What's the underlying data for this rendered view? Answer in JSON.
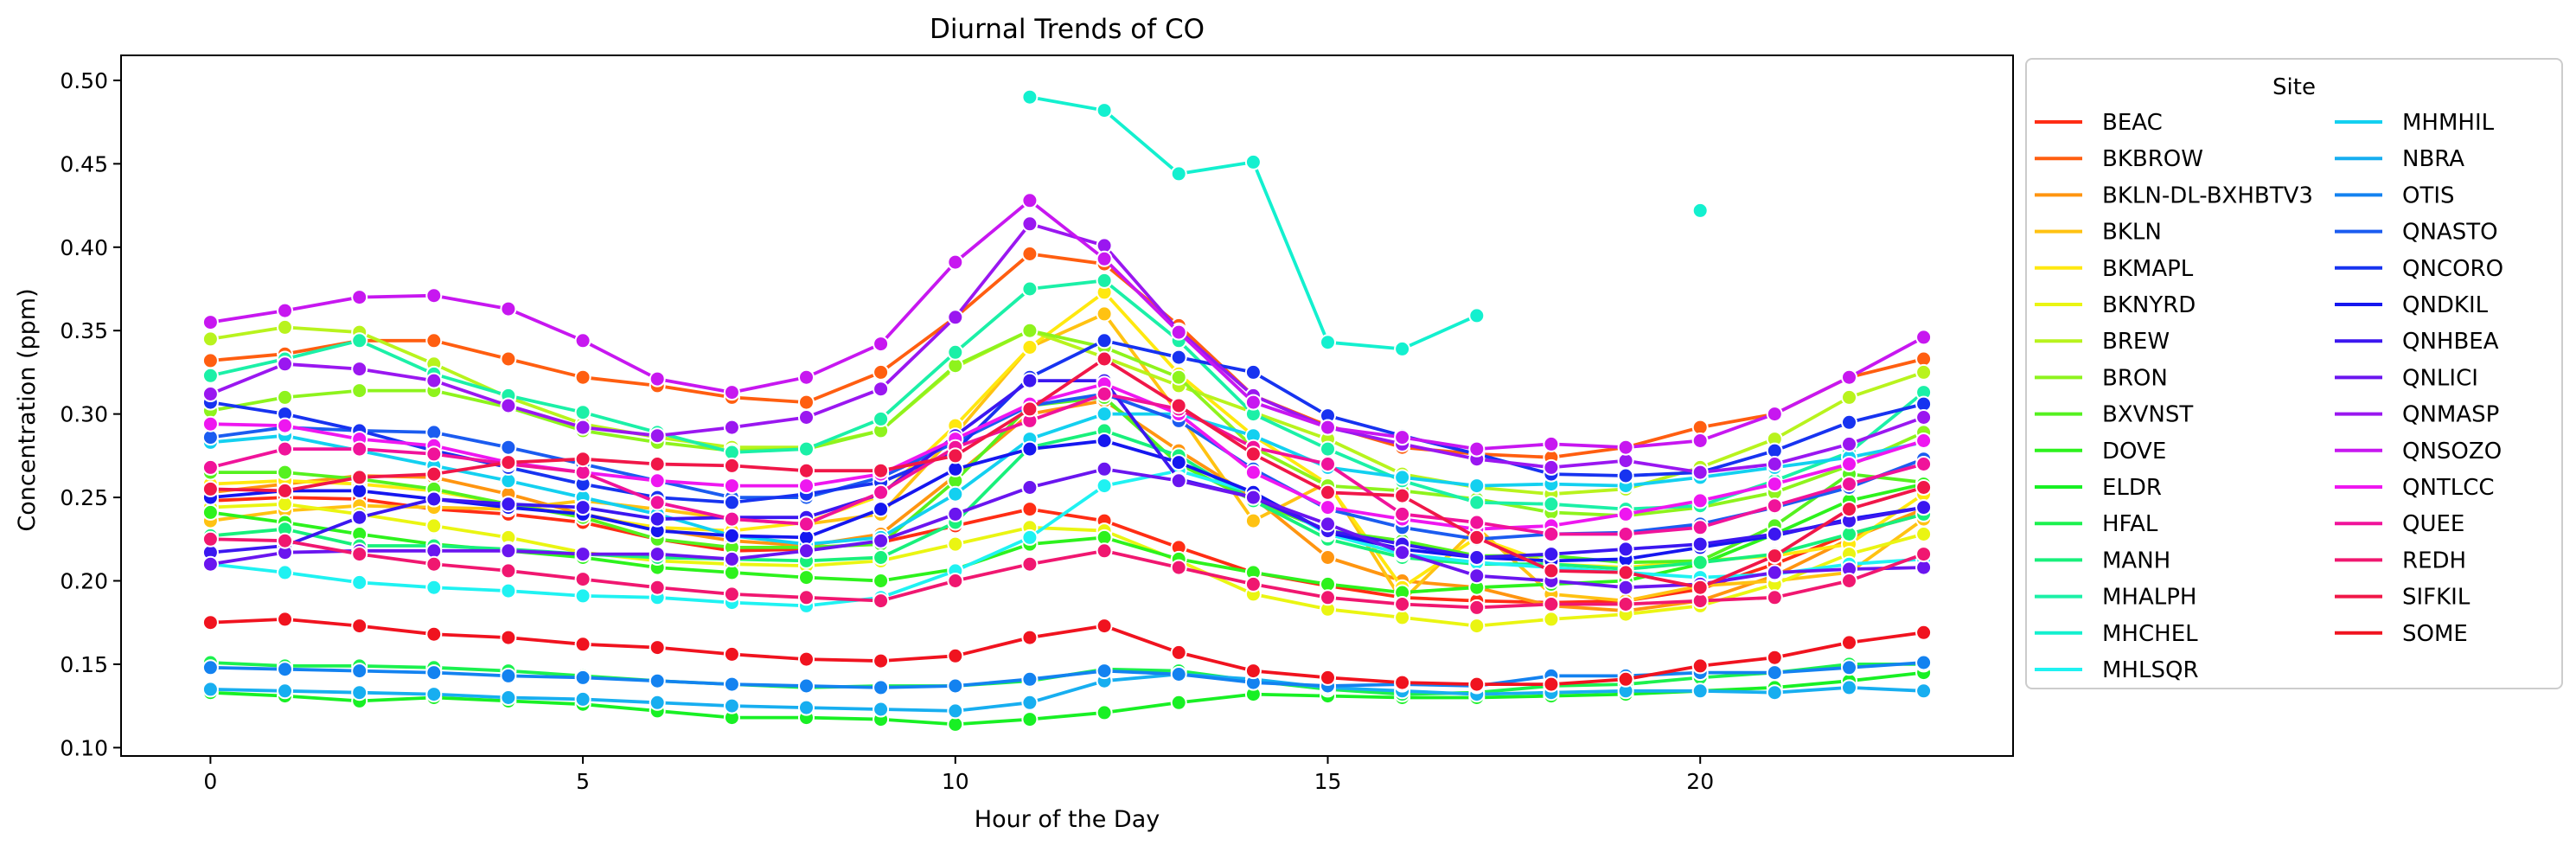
{
  "chart_data": {
    "type": "line",
    "title": "Diurnal Trends of CO",
    "xlabel": "Hour of the Day",
    "ylabel": "Concentration (ppm)",
    "xlim": [
      -1.2,
      24.2
    ],
    "ylim": [
      0.095,
      0.515
    ],
    "xticks": [
      "0",
      "5",
      "10",
      "15",
      "20"
    ],
    "yticks": [
      "0.10",
      "0.15",
      "0.20",
      "0.25",
      "0.30",
      "0.35",
      "0.40",
      "0.45",
      "0.50"
    ],
    "grid": false,
    "legend": {
      "title": "Site",
      "placement": "outside-right",
      "columns": 2
    },
    "x": [
      0,
      1,
      2,
      3,
      4,
      5,
      6,
      7,
      8,
      9,
      10,
      11,
      12,
      13,
      14,
      15,
      16,
      17,
      18,
      19,
      20,
      21,
      22,
      23
    ],
    "series": [
      {
        "name": "BEAC",
        "color": "#ff2d14",
        "values": [
          0.248,
          0.25,
          0.249,
          0.243,
          0.24,
          0.235,
          0.225,
          0.218,
          0.219,
          0.223,
          0.233,
          0.243,
          0.236,
          0.22,
          0.205,
          0.197,
          0.19,
          0.188,
          0.187,
          0.188,
          0.195,
          0.21,
          0.228,
          0.24
        ]
      },
      {
        "name": "BKBROW",
        "color": "#ff5e10",
        "values": [
          0.332,
          0.336,
          0.344,
          0.344,
          0.333,
          0.322,
          0.317,
          0.31,
          0.307,
          0.325,
          0.358,
          0.396,
          0.39,
          0.353,
          0.311,
          0.293,
          0.28,
          0.276,
          0.274,
          0.28,
          0.292,
          0.3,
          0.322,
          0.333
        ]
      },
      {
        "name": "BKLN-DL-BXHBTV3",
        "color": "#ff9510",
        "values": [
          0.253,
          0.258,
          0.263,
          0.262,
          0.252,
          0.24,
          0.231,
          0.224,
          0.221,
          0.228,
          0.263,
          0.3,
          0.308,
          0.278,
          0.25,
          0.214,
          0.2,
          0.196,
          0.185,
          0.182,
          0.188,
          0.203,
          0.225,
          0.243
        ]
      },
      {
        "name": "BKLN",
        "color": "#ffc212",
        "values": [
          0.236,
          0.242,
          0.245,
          0.244,
          0.243,
          0.248,
          0.243,
          0.237,
          0.234,
          0.24,
          0.288,
          0.34,
          0.36,
          0.3,
          0.236,
          0.259,
          0.188,
          0.232,
          0.192,
          0.188,
          0.197,
          0.2,
          0.205,
          0.237
        ]
      },
      {
        "name": "BKMAPL",
        "color": "#ffe80f",
        "values": [
          0.258,
          0.26,
          0.258,
          0.254,
          0.246,
          0.239,
          0.232,
          0.23,
          0.235,
          0.251,
          0.293,
          0.34,
          0.373,
          0.324,
          0.287,
          0.258,
          0.196,
          0.226,
          0.21,
          0.208,
          0.212,
          0.215,
          0.222,
          0.252
        ]
      },
      {
        "name": "BKNYRD",
        "color": "#eaf512",
        "values": [
          0.244,
          0.246,
          0.24,
          0.233,
          0.226,
          0.217,
          0.212,
          0.21,
          0.209,
          0.212,
          0.222,
          0.232,
          0.23,
          0.212,
          0.192,
          0.183,
          0.178,
          0.173,
          0.177,
          0.18,
          0.185,
          0.198,
          0.216,
          0.228
        ]
      },
      {
        "name": "BREW",
        "color": "#b8f31d",
        "values": [
          0.345,
          0.352,
          0.349,
          0.33,
          0.31,
          0.294,
          0.286,
          0.28,
          0.28,
          0.29,
          0.328,
          0.35,
          0.334,
          0.317,
          0.301,
          0.285,
          0.264,
          0.256,
          0.252,
          0.255,
          0.268,
          0.285,
          0.31,
          0.325
        ]
      },
      {
        "name": "BRON",
        "color": "#8ef31d",
        "values": [
          0.302,
          0.31,
          0.314,
          0.314,
          0.304,
          0.29,
          0.283,
          0.278,
          0.279,
          0.29,
          0.329,
          0.35,
          0.34,
          0.322,
          0.28,
          0.257,
          0.254,
          0.249,
          0.241,
          0.239,
          0.244,
          0.253,
          0.269,
          0.289
        ]
      },
      {
        "name": "BXVNST",
        "color": "#55f11f",
        "values": [
          0.265,
          0.265,
          0.261,
          0.255,
          0.246,
          0.238,
          0.225,
          0.22,
          0.22,
          0.222,
          0.26,
          0.305,
          0.31,
          0.27,
          0.248,
          0.23,
          0.224,
          0.215,
          0.215,
          0.211,
          0.212,
          0.233,
          0.264,
          0.259
        ]
      },
      {
        "name": "DOVE",
        "color": "#2df21d",
        "values": [
          0.241,
          0.235,
          0.228,
          0.222,
          0.218,
          0.214,
          0.208,
          0.205,
          0.202,
          0.2,
          0.207,
          0.222,
          0.226,
          0.213,
          0.205,
          0.198,
          0.193,
          0.196,
          0.198,
          0.2,
          0.21,
          0.228,
          0.248,
          0.258
        ]
      },
      {
        "name": "ELDR",
        "color": "#18f024",
        "values": [
          0.133,
          0.131,
          0.128,
          0.13,
          0.128,
          0.126,
          0.122,
          0.118,
          0.118,
          0.117,
          0.114,
          0.117,
          0.121,
          0.127,
          0.132,
          0.131,
          0.13,
          0.13,
          0.131,
          0.132,
          0.134,
          0.136,
          0.14,
          0.145
        ]
      },
      {
        "name": "HFAL",
        "color": "#1bf14e",
        "values": [
          0.151,
          0.149,
          0.149,
          0.148,
          0.146,
          0.143,
          0.14,
          0.138,
          0.136,
          0.137,
          0.137,
          0.14,
          0.147,
          0.146,
          0.14,
          0.135,
          0.132,
          0.133,
          0.137,
          0.138,
          0.142,
          0.145,
          0.15,
          0.15
        ]
      },
      {
        "name": "MANH",
        "color": "#18f07b",
        "values": [
          0.227,
          0.231,
          0.221,
          0.221,
          0.219,
          0.216,
          0.214,
          0.213,
          0.212,
          0.214,
          0.235,
          0.28,
          0.29,
          0.275,
          0.248,
          0.225,
          0.214,
          0.21,
          0.21,
          0.207,
          0.211,
          0.216,
          0.228,
          0.24
        ]
      },
      {
        "name": "MHALPH",
        "color": "#1bf0a7",
        "values": [
          0.323,
          0.333,
          0.344,
          0.324,
          0.311,
          0.301,
          0.289,
          0.277,
          0.279,
          0.297,
          0.337,
          0.375,
          0.38,
          0.344,
          0.3,
          0.279,
          0.26,
          0.247,
          0.246,
          0.243,
          0.245,
          0.26,
          0.277,
          0.313
        ]
      },
      {
        "name": "MHCHEL",
        "color": "#13f0cf",
        "values": [
          null,
          null,
          null,
          null,
          null,
          null,
          null,
          null,
          null,
          null,
          null,
          0.49,
          0.482,
          0.444,
          0.451,
          0.343,
          0.339,
          0.359,
          null,
          null,
          0.422,
          null,
          null,
          null
        ]
      },
      {
        "name": "MHLSQR",
        "color": "#1ff2f2",
        "values": [
          0.21,
          0.205,
          0.199,
          0.196,
          0.194,
          0.191,
          0.19,
          0.187,
          0.185,
          0.19,
          0.206,
          0.226,
          0.257,
          0.266,
          0.253,
          0.228,
          0.216,
          0.211,
          0.208,
          0.205,
          0.202,
          0.204,
          0.21,
          0.213
        ]
      },
      {
        "name": "MHMHIL",
        "color": "#13d0f0",
        "values": [
          0.283,
          0.287,
          0.278,
          0.269,
          0.26,
          0.25,
          0.24,
          0.227,
          0.222,
          0.226,
          0.252,
          0.285,
          0.3,
          0.3,
          0.287,
          0.268,
          0.262,
          0.257,
          0.258,
          0.257,
          0.262,
          0.268,
          0.274,
          0.283
        ]
      },
      {
        "name": "NBRA",
        "color": "#17aef0",
        "values": [
          0.135,
          0.134,
          0.133,
          0.132,
          0.13,
          0.129,
          0.127,
          0.125,
          0.124,
          0.123,
          0.122,
          0.127,
          0.14,
          0.144,
          0.141,
          0.136,
          0.134,
          0.132,
          0.133,
          0.134,
          0.134,
          0.133,
          0.136,
          0.134
        ]
      },
      {
        "name": "OTIS",
        "color": "#1382f0",
        "values": [
          0.148,
          0.147,
          0.146,
          0.145,
          0.143,
          0.142,
          0.14,
          0.138,
          0.137,
          0.136,
          0.137,
          0.141,
          0.146,
          0.144,
          0.139,
          0.137,
          0.138,
          0.137,
          0.143,
          0.143,
          0.145,
          0.145,
          0.148,
          0.151
        ]
      },
      {
        "name": "QNASTO",
        "color": "#1b5cf0",
        "values": [
          0.286,
          0.292,
          0.29,
          0.289,
          0.28,
          0.27,
          0.26,
          0.25,
          0.25,
          0.262,
          0.283,
          0.305,
          0.312,
          0.296,
          0.267,
          0.243,
          0.232,
          0.225,
          0.228,
          0.229,
          0.234,
          0.244,
          0.256,
          0.273
        ]
      },
      {
        "name": "QNCORO",
        "color": "#1733f0",
        "values": [
          0.307,
          0.3,
          0.29,
          0.278,
          0.268,
          0.258,
          0.25,
          0.247,
          0.252,
          0.259,
          0.278,
          0.322,
          0.344,
          0.334,
          0.325,
          0.299,
          0.287,
          0.276,
          0.264,
          0.263,
          0.265,
          0.278,
          0.295,
          0.306
        ]
      },
      {
        "name": "QNDKIL",
        "color": "#1517ef",
        "values": [
          0.25,
          0.254,
          0.254,
          0.249,
          0.244,
          0.24,
          0.23,
          0.227,
          0.226,
          0.243,
          0.267,
          0.279,
          0.284,
          0.271,
          0.253,
          0.229,
          0.219,
          0.214,
          0.212,
          0.213,
          0.22,
          0.227,
          0.237,
          0.244
        ]
      },
      {
        "name": "QNHBEA",
        "color": "#3b17f0",
        "values": [
          0.217,
          0.221,
          0.238,
          0.249,
          0.246,
          0.244,
          0.237,
          0.238,
          0.238,
          0.252,
          0.287,
          0.32,
          0.32,
          0.261,
          0.25,
          0.23,
          0.222,
          0.214,
          0.216,
          0.219,
          0.222,
          0.228,
          0.236,
          0.244
        ]
      },
      {
        "name": "QNLICI",
        "color": "#6a15ef",
        "values": [
          0.21,
          0.217,
          0.218,
          0.218,
          0.218,
          0.216,
          0.216,
          0.213,
          0.218,
          0.224,
          0.24,
          0.256,
          0.267,
          0.26,
          0.25,
          0.234,
          0.217,
          0.203,
          0.2,
          0.196,
          0.198,
          0.205,
          0.207,
          0.208
        ]
      },
      {
        "name": "QNMASP",
        "color": "#9a17f0",
        "values": [
          0.312,
          0.33,
          0.327,
          0.32,
          0.305,
          0.292,
          0.287,
          0.292,
          0.298,
          0.315,
          0.358,
          0.414,
          0.401,
          0.35,
          0.311,
          0.292,
          0.282,
          0.273,
          0.268,
          0.272,
          0.265,
          0.27,
          0.282,
          0.298
        ]
      },
      {
        "name": "QNSOZO",
        "color": "#c717f0",
        "values": [
          0.355,
          0.362,
          0.37,
          0.371,
          0.363,
          0.344,
          0.321,
          0.313,
          0.322,
          0.342,
          0.391,
          0.428,
          0.393,
          0.349,
          0.307,
          0.292,
          0.286,
          0.279,
          0.282,
          0.28,
          0.284,
          0.3,
          0.322,
          0.346
        ]
      },
      {
        "name": "QNTLCC",
        "color": "#ee17f0",
        "values": [
          0.294,
          0.293,
          0.285,
          0.281,
          0.271,
          0.265,
          0.26,
          0.257,
          0.257,
          0.264,
          0.285,
          0.306,
          0.318,
          0.3,
          0.265,
          0.244,
          0.237,
          0.231,
          0.233,
          0.24,
          0.248,
          0.258,
          0.27,
          0.284
        ]
      },
      {
        "name": "QUEE",
        "color": "#f0139a",
        "values": [
          0.268,
          0.279,
          0.279,
          0.276,
          0.27,
          0.265,
          0.247,
          0.237,
          0.234,
          0.253,
          0.28,
          0.296,
          0.312,
          0.303,
          0.28,
          0.27,
          0.24,
          0.235,
          0.228,
          0.228,
          0.232,
          0.245,
          0.258,
          0.27
        ]
      },
      {
        "name": "REDH",
        "color": "#f01770",
        "values": [
          0.225,
          0.224,
          0.216,
          0.21,
          0.206,
          0.201,
          0.196,
          0.192,
          0.19,
          0.188,
          0.2,
          0.21,
          0.218,
          0.208,
          0.198,
          0.19,
          0.186,
          0.184,
          0.186,
          0.186,
          0.188,
          0.19,
          0.2,
          0.216
        ]
      },
      {
        "name": "SIFKIL",
        "color": "#f01748",
        "values": [
          0.255,
          0.254,
          0.262,
          0.264,
          0.271,
          0.273,
          0.27,
          0.269,
          0.266,
          0.266,
          0.275,
          0.303,
          0.333,
          0.305,
          0.276,
          0.253,
          0.251,
          0.226,
          0.206,
          0.205,
          0.196,
          0.215,
          0.243,
          0.256
        ]
      },
      {
        "name": "SOME",
        "color": "#f0131f",
        "values": [
          0.175,
          0.177,
          0.173,
          0.168,
          0.166,
          0.162,
          0.16,
          0.156,
          0.153,
          0.152,
          0.155,
          0.166,
          0.173,
          0.157,
          0.146,
          0.142,
          0.139,
          0.138,
          0.138,
          0.141,
          0.149,
          0.154,
          0.163,
          0.169
        ]
      }
    ]
  }
}
